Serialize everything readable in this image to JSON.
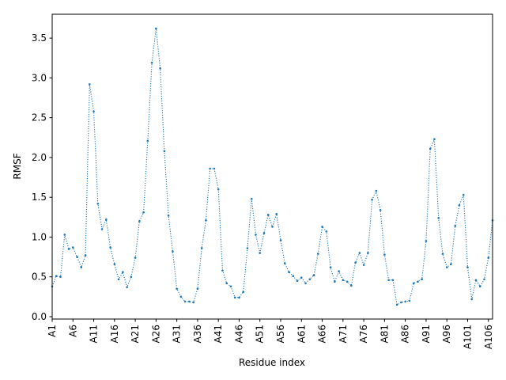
{
  "chart_data": {
    "type": "line",
    "title": "",
    "xlabel": "Residue index",
    "ylabel": "RMSF",
    "ylim": [
      -0.03,
      3.8
    ],
    "yticks": [
      0.0,
      0.5,
      1.0,
      1.5,
      2.0,
      2.5,
      3.0,
      3.5
    ],
    "ytick_labels": [
      "0.0",
      "0.5",
      "1.0",
      "1.5",
      "2.0",
      "2.5",
      "3.0",
      "3.5"
    ],
    "xtick_labels": [
      "A1",
      "A6",
      "A11",
      "A16",
      "A21",
      "A26",
      "A31",
      "A36",
      "A41",
      "A46",
      "A51",
      "A56",
      "A61",
      "A66",
      "A71",
      "A76",
      "A81",
      "A86",
      "A91",
      "A96",
      "A101",
      "A106"
    ],
    "line_style": "dotted",
    "marker": "dot",
    "color": "#1f77b4",
    "series": [
      {
        "values": [
          0.38,
          0.51,
          0.5,
          1.03,
          0.85,
          0.87,
          0.75,
          0.62,
          0.77,
          2.92,
          2.58,
          1.42,
          1.1,
          1.22,
          0.87,
          0.66,
          0.47,
          0.56,
          0.37,
          0.5,
          0.74,
          1.2,
          1.31,
          2.21,
          3.19,
          3.62,
          3.12,
          2.08,
          1.27,
          0.82,
          0.35,
          0.25,
          0.19,
          0.19,
          0.18,
          0.35,
          0.86,
          1.21,
          1.86,
          1.86,
          1.6,
          0.58,
          0.42,
          0.38,
          0.24,
          0.24,
          0.31,
          0.86,
          1.48,
          1.03,
          0.8,
          1.05,
          1.28,
          1.13,
          1.29,
          0.96,
          0.67,
          0.56,
          0.51,
          0.45,
          0.49,
          0.42,
          0.47,
          0.52,
          0.79,
          1.13,
          1.07,
          0.62,
          0.44,
          0.57,
          0.46,
          0.44,
          0.39,
          0.68,
          0.8,
          0.65,
          0.8,
          1.47,
          1.58,
          1.34,
          0.78,
          0.46,
          0.46,
          0.15,
          0.18,
          0.19,
          0.2,
          0.42,
          0.44,
          0.47,
          0.95,
          2.11,
          2.23,
          1.24,
          0.79,
          0.62,
          0.66,
          1.14,
          1.4,
          1.53,
          0.62,
          0.22,
          0.46,
          0.38,
          0.47,
          0.74,
          1.21
        ]
      }
    ]
  }
}
